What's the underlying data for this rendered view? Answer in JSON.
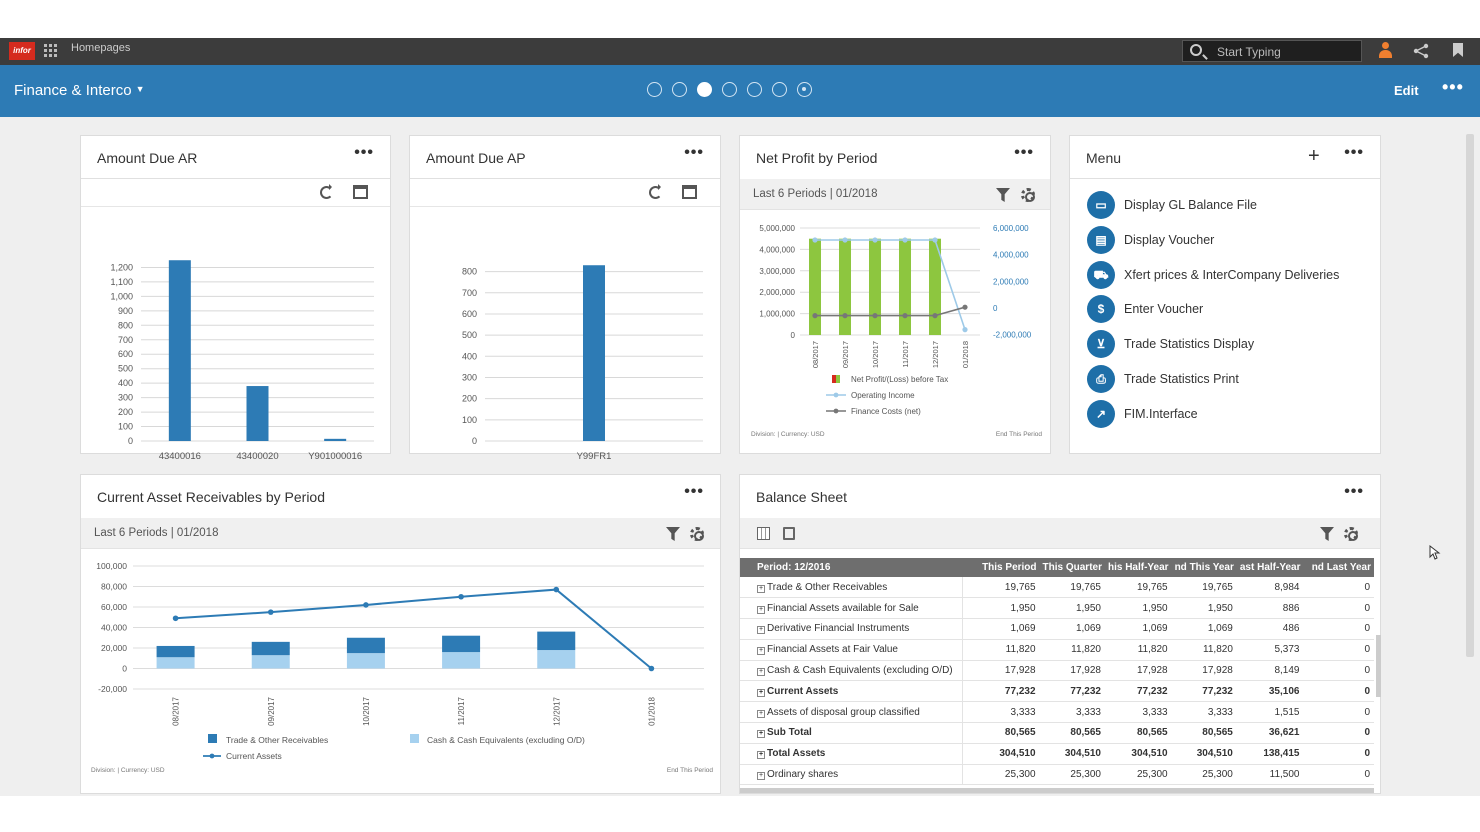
{
  "topbar": {
    "logo": "infor",
    "homepages": "Homepages",
    "search_placeholder": "Start Typing"
  },
  "header": {
    "title": "Finance & Interco",
    "edit": "Edit",
    "more": "•••",
    "page_count": 7,
    "active_page": 3
  },
  "more": "•••",
  "amount_due_ar": {
    "title": "Amount Due AR",
    "chart_data": {
      "type": "bar",
      "categories": [
        "43400016",
        "43400020",
        "Y901000016"
      ],
      "values": [
        1250,
        380,
        15
      ],
      "ylim": [
        0,
        1300
      ],
      "yticks": [
        "1,200",
        "1,100",
        "1,000",
        "900",
        "800",
        "700",
        "600",
        "500",
        "400",
        "300",
        "200",
        "100",
        "0"
      ],
      "ytick_values": [
        1200,
        1100,
        1000,
        900,
        800,
        700,
        600,
        500,
        400,
        300,
        200,
        100,
        0
      ],
      "color": "#2d7bb5"
    }
  },
  "amount_due_ap": {
    "title": "Amount Due AP",
    "chart_data": {
      "type": "bar",
      "categories": [
        "Y99FR1"
      ],
      "values": [
        830
      ],
      "ylim": [
        0,
        850
      ],
      "yticks": [
        "800",
        "700",
        "600",
        "500",
        "400",
        "300",
        "200",
        "100",
        "0"
      ],
      "ytick_values": [
        800,
        700,
        600,
        500,
        400,
        300,
        200,
        100,
        0
      ],
      "color": "#2d7bb5"
    }
  },
  "net_profit": {
    "title": "Net Profit by Period",
    "subtitle": "Last 6 Periods | 01/2018",
    "footer_left": "Division:     | Currency: USD",
    "footer_right": "End This Period",
    "chart_data": {
      "type": "bar",
      "categories": [
        "08/2017",
        "09/2017",
        "10/2017",
        "11/2017",
        "12/2017",
        "01/2018"
      ],
      "left_ticks": [
        "5,000,000",
        "4,000,000",
        "3,000,000",
        "2,000,000",
        "1,000,000",
        "0"
      ],
      "right_ticks": [
        "6,000,000",
        "4,000,000",
        "2,000,000",
        "0",
        "-2,000,000"
      ],
      "series": [
        {
          "name": "Net Profit/(Loss) before Tax",
          "values": [
            4500000,
            4500000,
            4500000,
            4500000,
            4500000,
            0
          ],
          "color": "#8dc63f"
        },
        {
          "name": "Operating Income",
          "values": [
            5000000,
            5000000,
            5000000,
            5000000,
            5000000,
            0
          ],
          "color": "#9ecae8"
        },
        {
          "name": "Finance Costs (net)",
          "values": [
            -500000,
            -500000,
            -500000,
            -500000,
            -500000,
            0
          ],
          "color": "#777777"
        }
      ]
    }
  },
  "menu": {
    "title": "Menu",
    "items": [
      {
        "label": "Display GL Balance File",
        "icon": "window-icon",
        "glyph": "▭"
      },
      {
        "label": "Display Voucher",
        "icon": "voucher-icon",
        "glyph": "▤"
      },
      {
        "label": "Xfert prices & InterCompany Deliveries",
        "icon": "truck-icon",
        "glyph": "⛟"
      },
      {
        "label": "Enter Voucher",
        "icon": "dollar-icon",
        "glyph": "$"
      },
      {
        "label": "Trade Statistics Display",
        "icon": "cart-icon",
        "glyph": "⊻"
      },
      {
        "label": "Trade Statistics Print",
        "icon": "print-icon",
        "glyph": "⎙"
      },
      {
        "label": "FIM.Interface",
        "icon": "external-link-icon",
        "glyph": "↗"
      }
    ]
  },
  "receivables": {
    "title": "Current Asset Receivables by Period",
    "subtitle": "Last 6 Periods | 01/2018",
    "footer_left": "Division:     | Currency: USD",
    "footer_right": "End This Period",
    "chart_data": {
      "type": "bar",
      "categories": [
        "08/2017",
        "09/2017",
        "10/2017",
        "11/2017",
        "12/2017",
        "01/2018"
      ],
      "yticks": [
        "100,000",
        "80,000",
        "60,000",
        "40,000",
        "20,000",
        "0",
        "-20,000"
      ],
      "ytick_values": [
        100000,
        80000,
        60000,
        40000,
        20000,
        0,
        -20000
      ],
      "ylim": [
        -20000,
        100000
      ],
      "series": [
        {
          "name": "Trade & Other Receivables",
          "values": [
            11000,
            13000,
            15000,
            16000,
            18000,
            0
          ],
          "color": "#2d7bb5"
        },
        {
          "name": "Cash & Cash Equivalents (excluding O/D)",
          "values": [
            11000,
            13000,
            15000,
            16000,
            18000,
            0
          ],
          "color": "#a6d1ef"
        },
        {
          "name": "Current Assets",
          "values": [
            49000,
            55000,
            62000,
            70000,
            77000,
            0
          ],
          "color": "#2d7bb5"
        }
      ]
    }
  },
  "balance_sheet": {
    "title": "Balance Sheet",
    "columns": [
      "Period: 12/2016",
      "This Period",
      "This Quarter",
      "his Half-Year",
      "nd This Year",
      "ast Half-Year",
      "nd Last Year"
    ],
    "rows": [
      {
        "label": "Trade & Other Receivables",
        "values": [
          "19,765",
          "19,765",
          "19,765",
          "19,765",
          "8,984",
          "0"
        ],
        "bold": false
      },
      {
        "label": "Financial Assets available for Sale",
        "values": [
          "1,950",
          "1,950",
          "1,950",
          "1,950",
          "886",
          "0"
        ],
        "bold": false
      },
      {
        "label": "Derivative Financial Instruments",
        "values": [
          "1,069",
          "1,069",
          "1,069",
          "1,069",
          "486",
          "0"
        ],
        "bold": false
      },
      {
        "label": "Financial Assets at Fair Value",
        "values": [
          "11,820",
          "11,820",
          "11,820",
          "11,820",
          "5,373",
          "0"
        ],
        "bold": false
      },
      {
        "label": "Cash & Cash Equivalents (excluding O/D)",
        "values": [
          "17,928",
          "17,928",
          "17,928",
          "17,928",
          "8,149",
          "0"
        ],
        "bold": false
      },
      {
        "label": "Current Assets",
        "values": [
          "77,232",
          "77,232",
          "77,232",
          "77,232",
          "35,106",
          "0"
        ],
        "bold": true
      },
      {
        "label": "Assets of disposal group classified",
        "values": [
          "3,333",
          "3,333",
          "3,333",
          "3,333",
          "1,515",
          "0"
        ],
        "bold": false
      },
      {
        "label": "Sub Total",
        "values": [
          "80,565",
          "80,565",
          "80,565",
          "80,565",
          "36,621",
          "0"
        ],
        "bold": true
      },
      {
        "label": "Total Assets",
        "values": [
          "304,510",
          "304,510",
          "304,510",
          "304,510",
          "138,415",
          "0"
        ],
        "bold": true
      },
      {
        "label": "Ordinary shares",
        "values": [
          "25,300",
          "25,300",
          "25,300",
          "25,300",
          "11,500",
          "0"
        ],
        "bold": false
      }
    ]
  }
}
